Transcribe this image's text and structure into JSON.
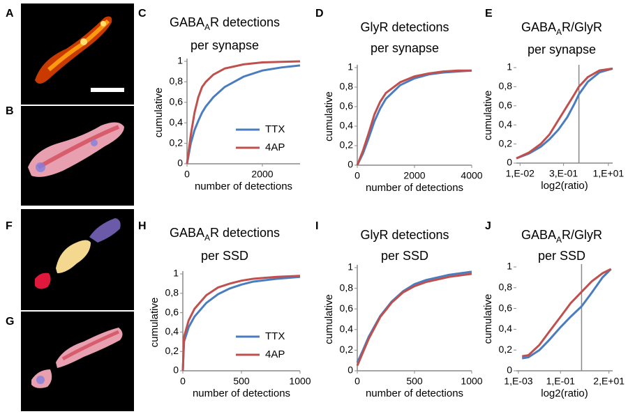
{
  "image_panels": [
    {
      "label": "A"
    },
    {
      "label": "B"
    },
    {
      "label": "F"
    },
    {
      "label": "G"
    }
  ],
  "chart_data": [
    {
      "type": "line",
      "label": "C",
      "title": [
        [
          {
            "text": "GABA"
          },
          {
            "text": "A",
            "sub": true
          },
          {
            "text": "R detections"
          }
        ],
        [
          {
            "text": "per synapse"
          }
        ]
      ],
      "x_label": "number of detections",
      "y_label": "cumulative",
      "xlim": [
        0,
        3000
      ],
      "xticks": [
        0,
        2000
      ],
      "ylim": [
        0,
        1
      ],
      "yticks": [
        0,
        {
          "value": 0.2,
          "label": "0,2"
        },
        {
          "value": 0.4,
          "label": "0,4"
        },
        {
          "value": 0.6,
          "label": "0,6"
        },
        {
          "value": 0.8,
          "label": "0,8"
        },
        1
      ],
      "legend": "lower-right",
      "series": [
        {
          "name": "TTX",
          "color": "#4a7dc0",
          "x": [
            0,
            100,
            200,
            300,
            400,
            500,
            700,
            1000,
            1500,
            2000,
            2500,
            3000
          ],
          "values": [
            0,
            0.2,
            0.33,
            0.42,
            0.5,
            0.56,
            0.65,
            0.75,
            0.85,
            0.91,
            0.94,
            0.96
          ]
        },
        {
          "name": "4AP",
          "color": "#c0504d",
          "x": [
            0,
            100,
            200,
            300,
            400,
            500,
            700,
            1000,
            1500,
            2000,
            2500,
            3000
          ],
          "values": [
            0,
            0.28,
            0.5,
            0.65,
            0.75,
            0.8,
            0.87,
            0.93,
            0.97,
            0.99,
            0.995,
            1
          ]
        }
      ]
    },
    {
      "type": "line",
      "label": "D",
      "title": [
        [
          {
            "text": "GlyR detections"
          }
        ],
        [
          {
            "text": "per synapse"
          }
        ]
      ],
      "x_label": "number of detections",
      "y_label": "cumulative",
      "xlim": [
        0,
        4000
      ],
      "xticks": [
        0,
        2000,
        4000
      ],
      "ylim": [
        0,
        1
      ],
      "yticks": [
        0,
        {
          "value": 0.2,
          "label": "0,2"
        },
        {
          "value": 0.4,
          "label": "0,4"
        },
        {
          "value": 0.6,
          "label": "0,6"
        },
        {
          "value": 0.8,
          "label": "0,8"
        },
        1
      ],
      "series": [
        {
          "color": "#4a7dc0",
          "x": [
            0,
            200,
            400,
            600,
            800,
            1000,
            1500,
            2000,
            2500,
            3000,
            3500,
            4000
          ],
          "values": [
            0,
            0.12,
            0.28,
            0.45,
            0.58,
            0.68,
            0.82,
            0.89,
            0.93,
            0.95,
            0.96,
            0.97
          ]
        },
        {
          "color": "#c0504d",
          "x": [
            0,
            200,
            400,
            600,
            800,
            1000,
            1500,
            2000,
            2500,
            3000,
            3500,
            4000
          ],
          "values": [
            0,
            0.15,
            0.33,
            0.52,
            0.65,
            0.74,
            0.85,
            0.91,
            0.94,
            0.96,
            0.97,
            0.97
          ]
        }
      ]
    },
    {
      "type": "line",
      "label": "E",
      "title": [
        [
          {
            "text": "GABA"
          },
          {
            "text": "A",
            "sub": true
          },
          {
            "text": "R/GlyR"
          }
        ],
        [
          {
            "text": "per synapse"
          }
        ]
      ],
      "x_label": "log2(ratio)",
      "y_label": "cumulative",
      "log_x": true,
      "y_axis_crossing": 1,
      "xlim": [
        0.0075,
        14
      ],
      "xticks": [
        {
          "value": 0.01,
          "label": "1,E-02"
        },
        {
          "value": 0.3,
          "label": "3,E-01"
        },
        {
          "value": 10,
          "label": "1,E+01"
        }
      ],
      "ylim": [
        0,
        1
      ],
      "yticks": [
        0,
        {
          "value": 0.2,
          "label": "0,2"
        },
        {
          "value": 0.4,
          "label": "0,4"
        },
        {
          "value": 0.6,
          "label": "0,6"
        },
        {
          "value": 0.8,
          "label": "0,8"
        },
        1
      ],
      "series": [
        {
          "color": "#4a7dc0",
          "x": [
            0.0075,
            0.02,
            0.05,
            0.1,
            0.2,
            0.4,
            0.7,
            1,
            2,
            5,
            14
          ],
          "values": [
            0.05,
            0.1,
            0.17,
            0.25,
            0.35,
            0.48,
            0.62,
            0.72,
            0.85,
            0.95,
            0.99
          ]
        },
        {
          "color": "#c0504d",
          "x": [
            0.0075,
            0.02,
            0.05,
            0.1,
            0.2,
            0.4,
            0.7,
            1,
            2,
            5,
            14
          ],
          "values": [
            0.05,
            0.11,
            0.2,
            0.3,
            0.45,
            0.6,
            0.72,
            0.8,
            0.9,
            0.97,
            0.99
          ]
        }
      ]
    },
    {
      "type": "line",
      "label": "H",
      "title": [
        [
          {
            "text": "GABA"
          },
          {
            "text": "A",
            "sub": true
          },
          {
            "text": "R detections"
          }
        ],
        [
          {
            "text": "per SSD"
          }
        ]
      ],
      "x_label": "number of detections",
      "y_label": "cumulative",
      "xlim": [
        0,
        1000
      ],
      "xticks": [
        0,
        500,
        1000
      ],
      "ylim": [
        0,
        1
      ],
      "yticks": [
        0,
        {
          "value": 0.2,
          "label": "0,2"
        },
        {
          "value": 0.4,
          "label": "0,4"
        },
        {
          "value": 0.6,
          "label": "0,6"
        },
        {
          "value": 0.8,
          "label": "0,8"
        },
        1
      ],
      "legend": "lower-right",
      "series": [
        {
          "name": "TTX",
          "color": "#4a7dc0",
          "x": [
            0,
            10,
            50,
            100,
            200,
            300,
            400,
            500,
            600,
            800,
            1000
          ],
          "values": [
            0,
            0.3,
            0.45,
            0.56,
            0.7,
            0.79,
            0.85,
            0.89,
            0.92,
            0.95,
            0.97
          ]
        },
        {
          "name": "4AP",
          "color": "#c0504d",
          "x": [
            0,
            10,
            50,
            100,
            200,
            300,
            400,
            500,
            600,
            800,
            1000
          ],
          "values": [
            0,
            0.35,
            0.52,
            0.64,
            0.78,
            0.86,
            0.9,
            0.93,
            0.95,
            0.97,
            0.98
          ]
        }
      ]
    },
    {
      "type": "line",
      "label": "I",
      "title": [
        [
          {
            "text": "GlyR detections"
          }
        ],
        [
          {
            "text": "per SSD"
          }
        ]
      ],
      "x_label": "number of detections",
      "y_label": "cumulative",
      "xlim": [
        0,
        1000
      ],
      "xticks": [
        0,
        500,
        1000
      ],
      "ylim": [
        0,
        1
      ],
      "yticks": [
        0,
        {
          "value": 0.2,
          "label": "0,2"
        },
        {
          "value": 0.4,
          "label": "0,4"
        },
        {
          "value": 0.6,
          "label": "0,6"
        },
        {
          "value": 0.8,
          "label": "0,8"
        },
        1
      ],
      "series": [
        {
          "color": "#4a7dc0",
          "x": [
            0,
            50,
            100,
            200,
            300,
            400,
            500,
            600,
            800,
            1000
          ],
          "values": [
            0.08,
            0.2,
            0.33,
            0.53,
            0.67,
            0.77,
            0.84,
            0.88,
            0.93,
            0.96
          ]
        },
        {
          "color": "#c0504d",
          "x": [
            0,
            50,
            100,
            200,
            300,
            400,
            500,
            600,
            800,
            1000
          ],
          "values": [
            0.05,
            0.18,
            0.31,
            0.52,
            0.66,
            0.76,
            0.82,
            0.86,
            0.91,
            0.94
          ]
        }
      ]
    },
    {
      "type": "line",
      "label": "J",
      "title": [
        [
          {
            "text": "GABA"
          },
          {
            "text": "A",
            "sub": true
          },
          {
            "text": "R/GlyR"
          }
        ],
        [
          {
            "text": "per SSD"
          }
        ]
      ],
      "x_label": "log2(ratio)",
      "log_x": true,
      "y_axis_crossing": 1,
      "xlim": [
        0.0008,
        30
      ],
      "xticks": [
        {
          "value": 0.001,
          "label": "1,E-03"
        },
        {
          "value": 0.1,
          "label": "1,E-01"
        },
        {
          "value": 20,
          "label": "2,E+01"
        }
      ],
      "ylim": [
        0,
        1
      ],
      "yticks": [
        0,
        {
          "value": 0.2,
          "label": "0,2"
        },
        {
          "value": 0.4,
          "label": "0,4"
        },
        {
          "value": 0.6,
          "label": "0,6"
        },
        {
          "value": 0.8,
          "label": "0,8"
        },
        1
      ],
      "y_label": "cumulative",
      "series": [
        {
          "color": "#4a7dc0",
          "x": [
            0.0015,
            0.003,
            0.01,
            0.03,
            0.1,
            0.3,
            1,
            3,
            10,
            25
          ],
          "values": [
            0.12,
            0.13,
            0.2,
            0.3,
            0.42,
            0.52,
            0.62,
            0.75,
            0.9,
            0.98
          ]
        },
        {
          "color": "#c0504d",
          "x": [
            0.0015,
            0.003,
            0.01,
            0.03,
            0.1,
            0.3,
            1,
            3,
            10,
            25
          ],
          "values": [
            0.14,
            0.15,
            0.25,
            0.38,
            0.52,
            0.65,
            0.76,
            0.86,
            0.94,
            0.98
          ]
        }
      ]
    }
  ]
}
